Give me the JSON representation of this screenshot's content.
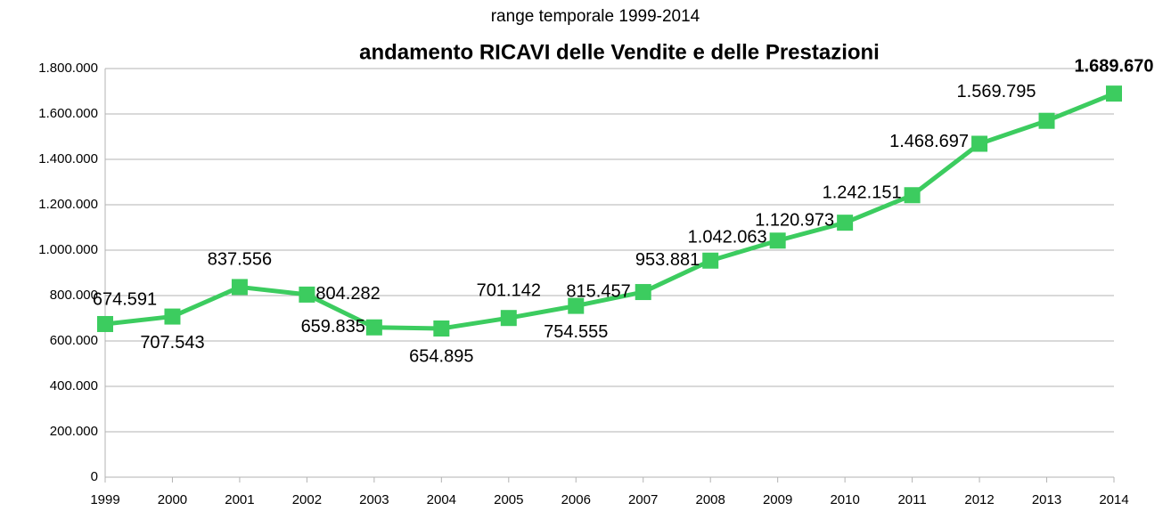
{
  "chart_data": {
    "type": "line",
    "subtitle": "range temporale 1999-2014",
    "title": "andamento RICAVI delle Vendite e delle Prestazioni",
    "categories": [
      "1999",
      "2000",
      "2001",
      "2002",
      "2003",
      "2004",
      "2005",
      "2006",
      "2007",
      "2008",
      "2009",
      "2010",
      "2011",
      "2012",
      "2013",
      "2014"
    ],
    "series": [
      {
        "name": "RICAVI delle Vendite e delle Prestazioni",
        "color": "#3ccc5f",
        "values": [
          674591,
          707543,
          837556,
          804282,
          659835,
          654895,
          701142,
          754555,
          815457,
          953881,
          1042063,
          1120973,
          1242151,
          1468697,
          1569795,
          1689670
        ],
        "value_labels": [
          "674.591",
          "707.543",
          "837.556",
          "804.282",
          "659.835",
          "654.895",
          "701.142",
          "754.555",
          "815.457",
          "953.881",
          "1.042.063",
          "1.120.973",
          "1.242.151",
          "1.468.697",
          "1.569.795",
          "1.689.670"
        ]
      }
    ],
    "ylim": [
      0,
      1800000
    ],
    "yticks": [
      0,
      {
        "value": 200000,
        "label": "200.000"
      },
      {
        "value": 400000,
        "label": "400.000"
      },
      {
        "value": 600000,
        "label": "600.000"
      },
      {
        "value": 800000,
        "label": "800.000"
      },
      {
        "value": 1000000,
        "label": "1.000.000"
      },
      {
        "value": 1200000,
        "label": "1.200.000"
      },
      {
        "value": 1400000,
        "label": "1.400.000"
      },
      {
        "value": 1600000,
        "label": "1.600.000"
      },
      {
        "value": 1800000,
        "label": "1.800.000"
      }
    ],
    "grid": true
  }
}
